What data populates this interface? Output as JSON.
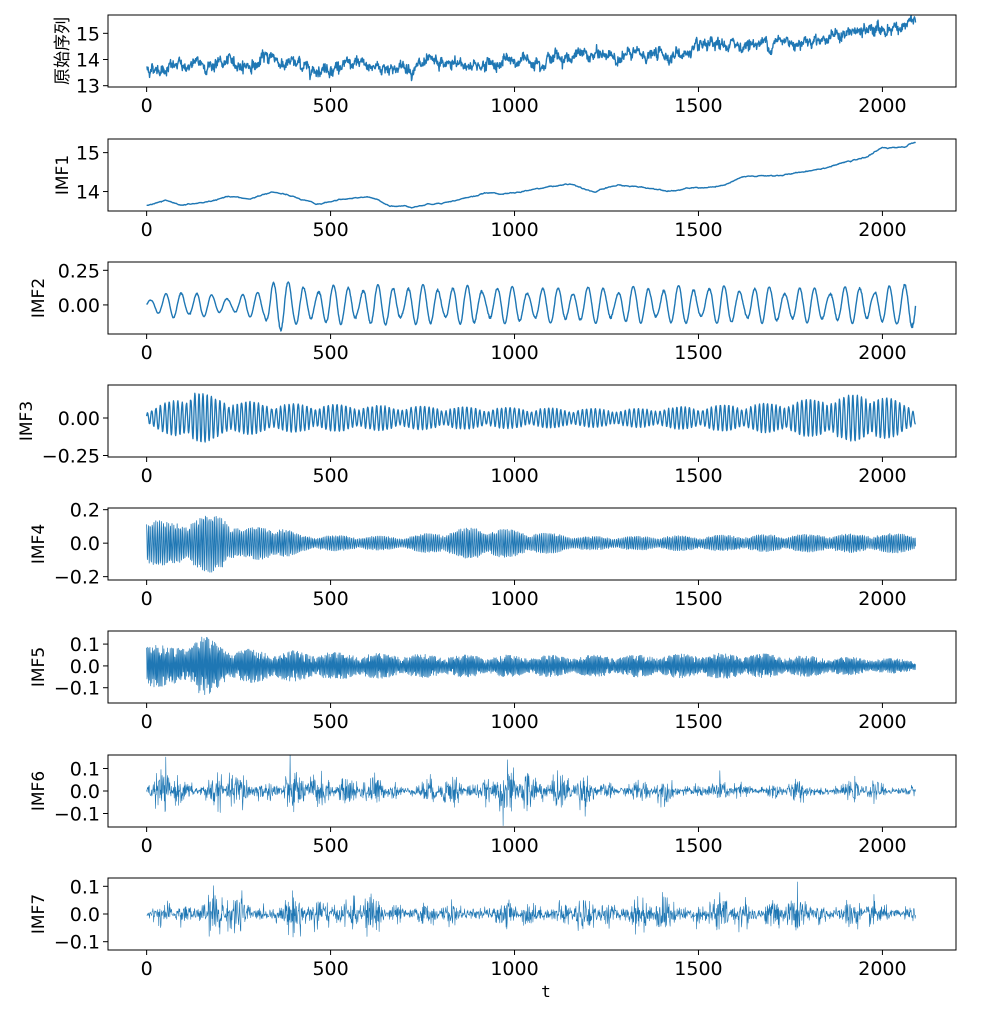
{
  "chart_data": {
    "type": "line",
    "series_color": "#1f77b4",
    "xlabel": "t",
    "xlim": [
      -105,
      2200
    ],
    "xticks": [
      "0",
      "500",
      "1000",
      "1500",
      "2000"
    ],
    "n_points": 2091,
    "panels": [
      {
        "ylabel": "原始序列",
        "ylim": [
          12.95,
          15.7
        ],
        "yticks": [
          {
            "v": 13,
            "label": "13"
          },
          {
            "v": 14,
            "label": "14"
          },
          {
            "v": 15,
            "label": "15"
          }
        ],
        "kind": "trend_noise",
        "trend": [
          [
            0,
            13.65
          ],
          [
            100,
            13.75
          ],
          [
            200,
            13.85
          ],
          [
            300,
            13.8
          ],
          [
            340,
            14.2
          ],
          [
            360,
            13.9
          ],
          [
            450,
            13.7
          ],
          [
            550,
            13.75
          ],
          [
            700,
            13.7
          ],
          [
            800,
            13.75
          ],
          [
            950,
            13.85
          ],
          [
            1100,
            14.1
          ],
          [
            1300,
            14.15
          ],
          [
            1450,
            14.2
          ],
          [
            1600,
            14.55
          ],
          [
            1750,
            14.7
          ],
          [
            1900,
            14.95
          ],
          [
            2000,
            15.15
          ],
          [
            2090,
            15.4
          ]
        ],
        "noise": 0.17,
        "linewidth": 1.4
      },
      {
        "ylabel": "IMF1",
        "ylim": [
          13.5,
          15.35
        ],
        "yticks": [
          {
            "v": 14,
            "label": "14"
          },
          {
            "v": 15,
            "label": "15"
          }
        ],
        "kind": "smooth",
        "trend": [
          [
            0,
            13.65
          ],
          [
            50,
            13.75
          ],
          [
            100,
            13.65
          ],
          [
            150,
            13.7
          ],
          [
            220,
            13.85
          ],
          [
            280,
            13.8
          ],
          [
            340,
            14.0
          ],
          [
            400,
            13.85
          ],
          [
            460,
            13.65
          ],
          [
            520,
            13.78
          ],
          [
            600,
            13.88
          ],
          [
            660,
            13.65
          ],
          [
            720,
            13.62
          ],
          [
            780,
            13.7
          ],
          [
            850,
            13.8
          ],
          [
            920,
            13.95
          ],
          [
            1000,
            13.95
          ],
          [
            1080,
            14.1
          ],
          [
            1150,
            14.2
          ],
          [
            1220,
            14.0
          ],
          [
            1280,
            14.15
          ],
          [
            1350,
            14.1
          ],
          [
            1420,
            14.05
          ],
          [
            1500,
            14.1
          ],
          [
            1560,
            14.12
          ],
          [
            1620,
            14.35
          ],
          [
            1700,
            14.4
          ],
          [
            1760,
            14.45
          ],
          [
            1850,
            14.65
          ],
          [
            1950,
            14.85
          ],
          [
            2000,
            15.12
          ],
          [
            2060,
            15.15
          ],
          [
            2090,
            15.28
          ]
        ],
        "noise": 0.02,
        "linewidth": 1.4
      },
      {
        "ylabel": "IMF2",
        "ylim": [
          -0.21,
          0.31
        ],
        "yticks": [
          {
            "v": 0,
            "label": "0.00"
          },
          {
            "v": 0.25,
            "label": "0.25"
          }
        ],
        "kind": "oscillation",
        "period": 42,
        "amp": [
          [
            0,
            0.04
          ],
          [
            100,
            0.12
          ],
          [
            200,
            0.06
          ],
          [
            320,
            0.1
          ],
          [
            340,
            0.28
          ],
          [
            400,
            0.14
          ],
          [
            700,
            0.15
          ],
          [
            1100,
            0.13
          ],
          [
            1500,
            0.14
          ],
          [
            1800,
            0.13
          ],
          [
            2050,
            0.14
          ],
          [
            2090,
            0.28
          ]
        ],
        "linewidth": 1.4
      },
      {
        "ylabel": "IMF3",
        "ylim": [
          -0.26,
          0.22
        ],
        "yticks": [
          {
            "v": -0.25,
            "label": "−0.25"
          },
          {
            "v": 0,
            "label": "0.00"
          }
        ],
        "kind": "oscillation",
        "period": 12,
        "amp": [
          [
            0,
            0.05
          ],
          [
            80,
            0.13
          ],
          [
            130,
            0.2
          ],
          [
            180,
            0.14
          ],
          [
            320,
            0.1
          ],
          [
            700,
            0.08
          ],
          [
            1300,
            0.06
          ],
          [
            1700,
            0.1
          ],
          [
            1980,
            0.17
          ],
          [
            2090,
            0.07
          ]
        ],
        "linewidth": 1.3
      },
      {
        "ylabel": "IMF4",
        "ylim": [
          -0.22,
          0.21
        ],
        "yticks": [
          {
            "v": -0.2,
            "label": "−0.2"
          },
          {
            "v": 0,
            "label": "0.0"
          },
          {
            "v": 0.2,
            "label": "0.2"
          }
        ],
        "kind": "oscillation",
        "period": 5,
        "amp": [
          [
            0,
            0.17
          ],
          [
            60,
            0.12
          ],
          [
            140,
            0.17
          ],
          [
            210,
            0.18
          ],
          [
            260,
            0.08
          ],
          [
            340,
            0.12
          ],
          [
            420,
            0.05
          ],
          [
            700,
            0.04
          ],
          [
            900,
            0.1
          ],
          [
            1200,
            0.04
          ],
          [
            2090,
            0.06
          ]
        ],
        "linewidth": 0.8
      },
      {
        "ylabel": "IMF5",
        "ylim": [
          -0.17,
          0.16
        ],
        "yticks": [
          {
            "v": -0.1,
            "label": "−0.1"
          },
          {
            "v": 0,
            "label": "0.0"
          },
          {
            "v": 0.1,
            "label": "0.1"
          }
        ],
        "kind": "oscillation",
        "period": 3.2,
        "amp": [
          [
            0,
            0.13
          ],
          [
            60,
            0.08
          ],
          [
            150,
            0.14
          ],
          [
            240,
            0.08
          ],
          [
            400,
            0.07
          ],
          [
            560,
            0.06
          ],
          [
            900,
            0.05
          ],
          [
            1300,
            0.05
          ],
          [
            1600,
            0.06
          ],
          [
            2090,
            0.03
          ]
        ],
        "linewidth": 0.7
      },
      {
        "ylabel": "IMF6",
        "ylim": [
          -0.16,
          0.16
        ],
        "yticks": [
          {
            "v": -0.1,
            "label": "−0.1"
          },
          {
            "v": 0,
            "label": "0.0"
          },
          {
            "v": 0.1,
            "label": "0.1"
          }
        ],
        "kind": "noise_burst",
        "amp": [
          [
            0,
            0.05
          ],
          [
            80,
            0.12
          ],
          [
            100,
            0.07
          ],
          [
            250,
            0.09
          ],
          [
            500,
            0.1
          ],
          [
            700,
            0.05
          ],
          [
            1100,
            0.13
          ],
          [
            1200,
            0.06
          ],
          [
            1600,
            0.05
          ],
          [
            2090,
            0.04
          ]
        ],
        "linewidth": 0.6
      },
      {
        "ylabel": "IMF7",
        "ylim": [
          -0.13,
          0.13
        ],
        "yticks": [
          {
            "v": -0.1,
            "label": "−0.1"
          },
          {
            "v": 0,
            "label": "0.0"
          },
          {
            "v": 0.1,
            "label": "0.1"
          }
        ],
        "kind": "noise_burst",
        "amp": [
          [
            0,
            0.02
          ],
          [
            200,
            0.11
          ],
          [
            300,
            0.05
          ],
          [
            500,
            0.09
          ],
          [
            800,
            0.04
          ],
          [
            1300,
            0.07
          ],
          [
            1800,
            0.07
          ],
          [
            2090,
            0.04
          ]
        ],
        "linewidth": 0.6
      }
    ]
  }
}
